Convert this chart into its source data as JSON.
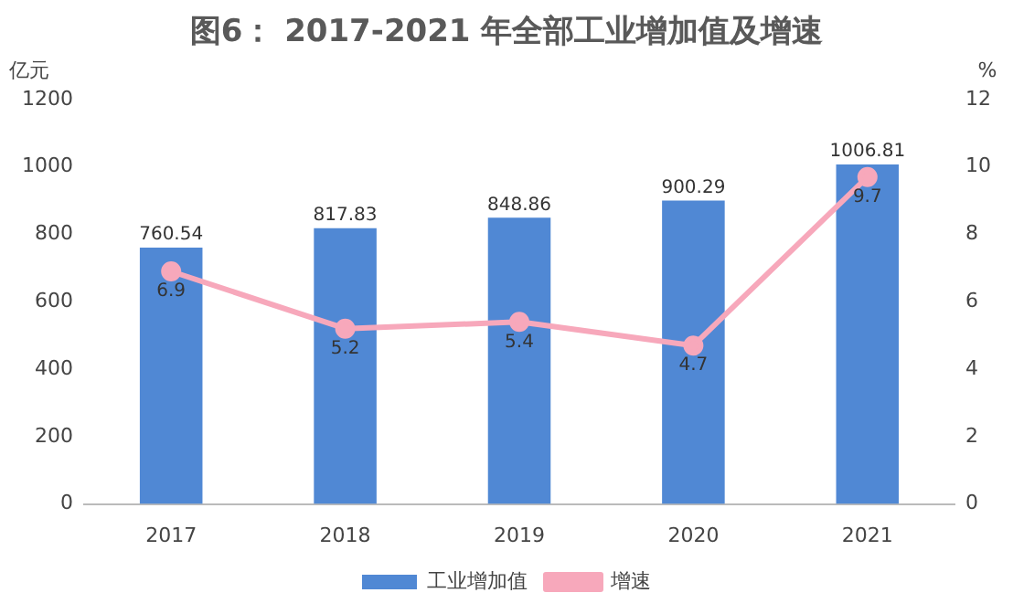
{
  "chart_data": {
    "type": "bar",
    "title": "图6： 2017-2021 年全部工业增加值及增速",
    "ylabel": "亿元",
    "y2label": "%",
    "categories": [
      "2017",
      "2018",
      "2019",
      "2020",
      "2021"
    ],
    "series": [
      {
        "name": "工业增加值",
        "color": "#5088d4",
        "values": [
          760.54,
          817.83,
          848.86,
          900.29,
          1006.81
        ]
      },
      {
        "name": "增速",
        "type": "line",
        "axis": "y2",
        "color": "#f7a8bb",
        "values": [
          6.9,
          5.2,
          5.4,
          4.7,
          9.7
        ]
      }
    ],
    "ylim": [
      0,
      1200
    ],
    "yticks": [
      0,
      200,
      400,
      600,
      800,
      1000,
      1200
    ],
    "y2lim": [
      0,
      12
    ],
    "y2ticks": [
      0,
      2,
      4,
      6,
      8,
      10,
      12
    ],
    "data_labels": true,
    "legend": "bottom",
    "grid": false,
    "marker": "circle",
    "line_style": "solid"
  }
}
